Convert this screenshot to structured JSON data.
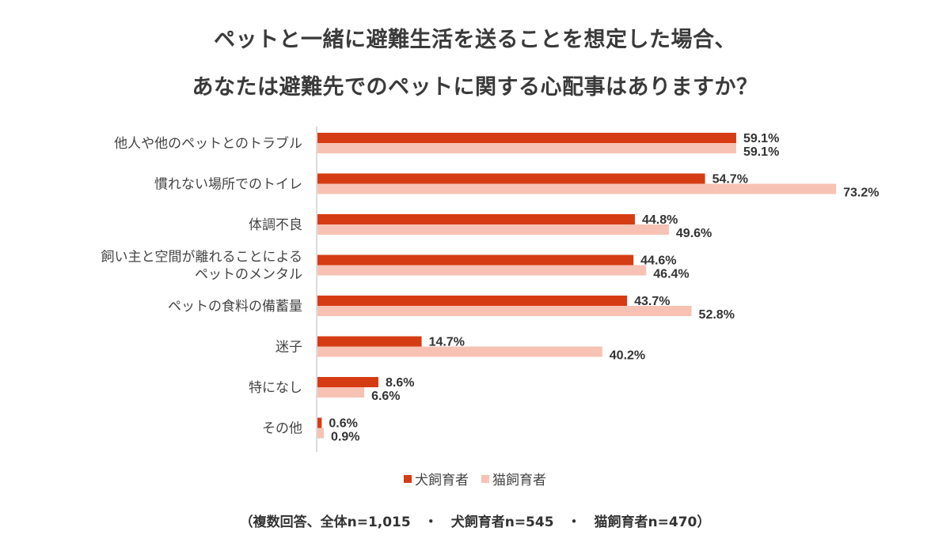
{
  "title_line1": "ペットと一緒に避難生活を送ることを想定した場合、",
  "title_line2": "あなたは避難先でのペットに関する心配事はありますか？",
  "note": "（複数回答、全体n=1,015　・　犬飼育者n=545　・　猫飼育者n=470）",
  "colors": {
    "dog": "#d63c14",
    "cat": "#f7c2b4",
    "axis": "#d0d0d0"
  },
  "chart_data": {
    "type": "bar",
    "orientation": "horizontal",
    "categories": [
      [
        "他人や他のペットとのトラブル"
      ],
      [
        "慣れない場所でのトイレ"
      ],
      [
        "体調不良"
      ],
      [
        "飼い主と空間が離れることによる",
        "ペットのメンタル"
      ],
      [
        "ペットの食料の備蓄量"
      ],
      [
        "迷子"
      ],
      [
        "特になし"
      ],
      [
        "その他"
      ]
    ],
    "series": [
      {
        "name": "犬飼育者",
        "values": [
          59.1,
          54.7,
          44.8,
          44.6,
          43.7,
          14.7,
          8.6,
          0.6
        ],
        "labels": [
          "59.1%",
          "54.7%",
          "44.8%",
          "44.6%",
          "43.7%",
          "14.7%",
          "8.6%",
          "0.6%"
        ]
      },
      {
        "name": "猫飼育者",
        "values": [
          59.1,
          73.2,
          49.6,
          46.4,
          52.8,
          40.2,
          6.6,
          0.9
        ],
        "labels": [
          "59.1%",
          "73.2%",
          "49.6%",
          "46.4%",
          "52.8%",
          "40.2%",
          "6.6%",
          "0.9%"
        ]
      }
    ],
    "xlim": [
      0,
      80
    ],
    "legend_position": "bottom",
    "grid": false
  }
}
